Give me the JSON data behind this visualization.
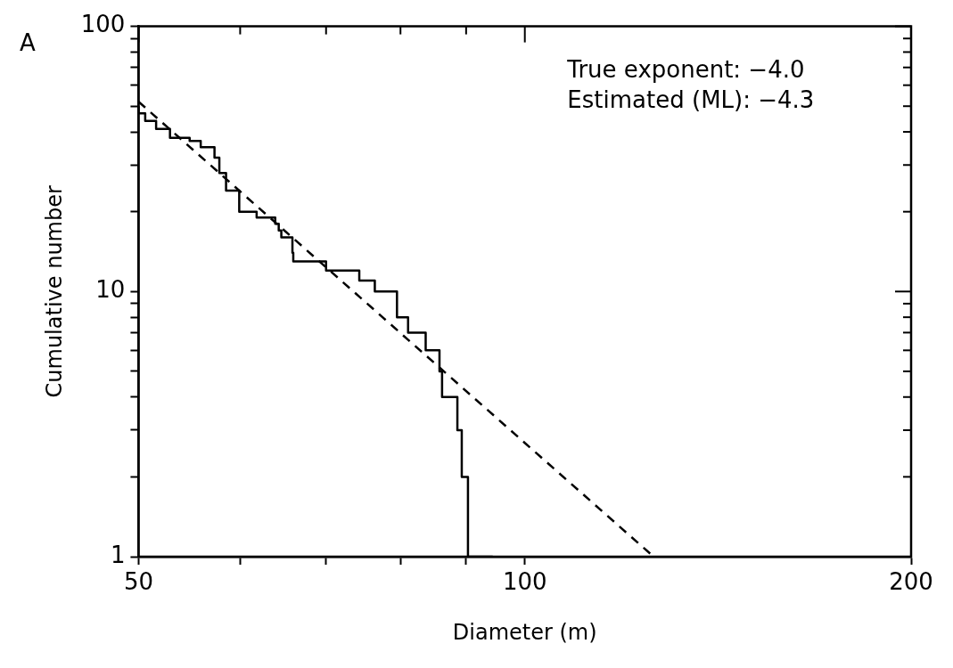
{
  "chart_data": {
    "type": "step",
    "xlabel": "Diameter (m)",
    "ylabel": "Cumulative number",
    "annotations": [
      "A",
      "True exponent: −4.0",
      "Estimated (ML): −4.3"
    ],
    "log": "xy",
    "grid": false,
    "legend": false,
    "marker": "none",
    "xlim": [
      50,
      200
    ],
    "xticks": [
      50,
      {
        "value": 60,
        "label": null
      },
      {
        "value": 70,
        "label": null
      },
      {
        "value": 80,
        "label": null
      },
      {
        "value": 90,
        "label": null
      },
      100,
      200
    ],
    "ylim": [
      1,
      100
    ],
    "yticks": [
      1,
      {
        "value": 2,
        "label": null
      },
      {
        "value": 3,
        "label": null
      },
      {
        "value": 4,
        "label": null
      },
      {
        "value": 5,
        "label": null
      },
      {
        "value": 6,
        "label": null
      },
      {
        "value": 7,
        "label": null
      },
      {
        "value": 8,
        "label": null
      },
      {
        "value": 9,
        "label": null
      },
      10,
      {
        "value": 20,
        "label": null
      },
      {
        "value": 30,
        "label": null
      },
      {
        "value": 40,
        "label": null
      },
      {
        "value": 50,
        "label": null
      },
      {
        "value": 60,
        "label": null
      },
      {
        "value": 70,
        "label": null
      },
      {
        "value": 80,
        "label": null
      },
      {
        "value": 90,
        "label": null
      },
      100
    ],
    "series": [
      {
        "color": "#000000",
        "line_style": "solid",
        "x": [
          50,
          50.6,
          51.6,
          52.9,
          54.8,
          55.9,
          57.3,
          57.8,
          58.5,
          59.9,
          61.8,
          63.9,
          64.3,
          64.6,
          65.9,
          66,
          70,
          74.3,
          76.4,
          79.5,
          81.1,
          83.7,
          85.8,
          86.2,
          88.6,
          89.3,
          90.3,
          94.4
        ],
        "values": [
          50,
          47,
          44,
          41,
          38,
          37,
          35,
          32,
          28,
          24,
          20,
          19,
          18,
          17,
          16,
          14,
          13,
          12,
          11,
          10,
          8,
          7,
          6,
          5,
          4,
          3,
          2,
          1
        ]
      },
      {
        "type": "line",
        "color": "#000000",
        "line_style": "dashed",
        "x": [
          50,
          126
        ],
        "values": [
          52,
          1
        ]
      }
    ]
  }
}
